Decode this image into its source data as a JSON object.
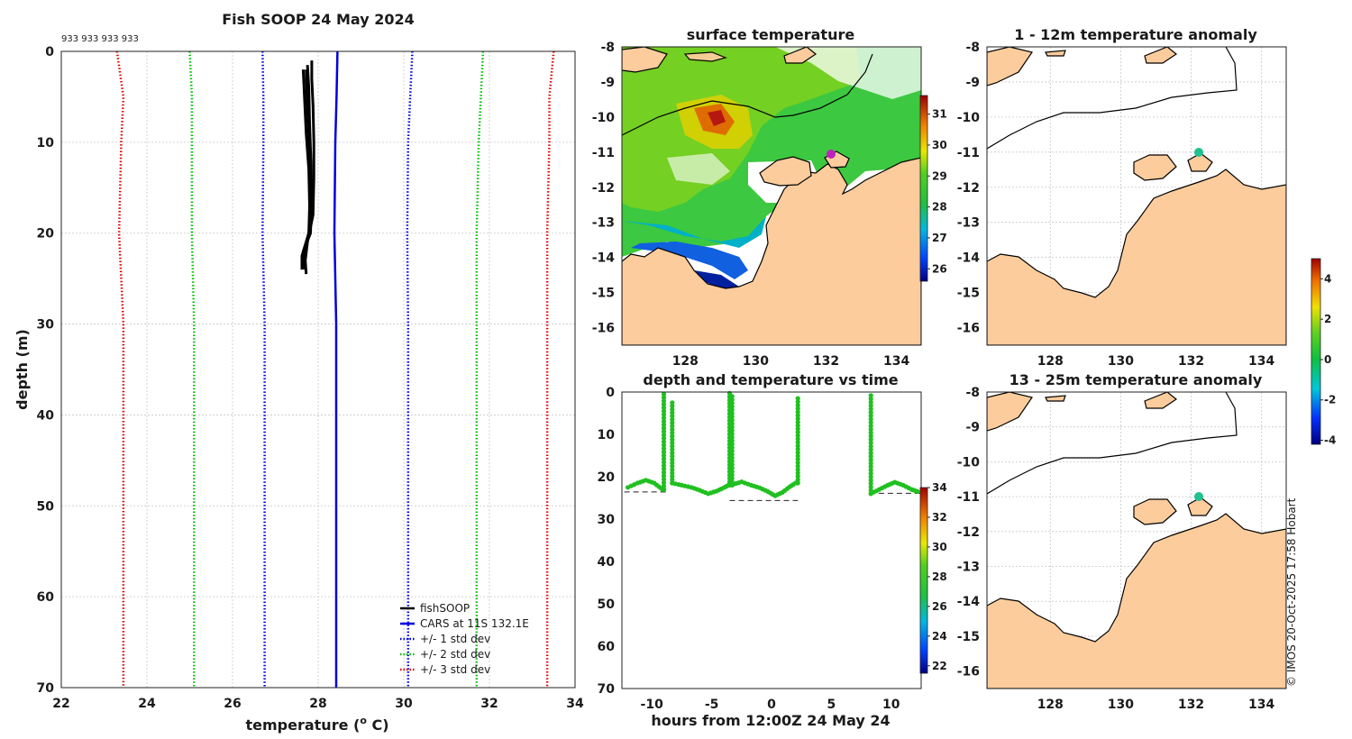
{
  "title_main": "Fish SOOP 24 May 2024",
  "sample_ids": "933 933 933 933",
  "credit": "© IMOS 20-Oct-2025 17:58 Hobart",
  "chart_data": [
    {
      "id": "profile",
      "type": "line",
      "title": "Fish SOOP 24 May 2024",
      "xlabel": "temperature (",
      "xlabel_sup": "o",
      "xlabel_end": " C)",
      "ylabel": "depth (m)",
      "xlim": [
        22,
        34
      ],
      "ylim": [
        0,
        70
      ],
      "y_reversed": true,
      "xticks": [
        22,
        24,
        26,
        28,
        30,
        32,
        34
      ],
      "yticks": [
        0,
        10,
        20,
        30,
        40,
        50,
        60,
        70
      ],
      "legend_position": "bottom-right",
      "series": [
        {
          "name": "fishSOOP",
          "color": "#000000",
          "style": "solid",
          "profiles": [
            {
              "depth": [
                1,
                3,
                6,
                10,
                14,
                18,
                21,
                23,
                24.5
              ],
              "temp": [
                27.85,
                27.85,
                27.88,
                27.9,
                27.9,
                27.88,
                27.75,
                27.7,
                27.72
              ]
            },
            {
              "depth": [
                1.5,
                4,
                8,
                12,
                16,
                19,
                22,
                24
              ],
              "temp": [
                27.75,
                27.78,
                27.8,
                27.83,
                27.85,
                27.83,
                27.68,
                27.66
              ]
            },
            {
              "depth": [
                2,
                5,
                9,
                13,
                17,
                20,
                22.5,
                24
              ],
              "temp": [
                27.65,
                27.68,
                27.72,
                27.78,
                27.8,
                27.78,
                27.62,
                27.62
              ]
            },
            {
              "depth": [
                2,
                5,
                9,
                13,
                17,
                20,
                22,
                23.5
              ],
              "temp": [
                27.72,
                27.74,
                27.78,
                27.82,
                27.84,
                27.82,
                27.65,
                27.65
              ]
            }
          ]
        },
        {
          "name": "CARS at 11S 132.1E",
          "color": "#0000e0",
          "style": "solid",
          "depth": [
            0,
            5,
            10,
            20,
            30,
            40,
            50,
            60,
            70
          ],
          "temp": [
            28.45,
            28.43,
            28.4,
            28.38,
            28.42,
            28.42,
            28.42,
            28.42,
            28.42
          ]
        },
        {
          "name": "+/- 1 std dev",
          "color": "#0000e0",
          "style": "dotted",
          "depth": [
            0,
            5,
            10,
            20,
            30,
            40,
            50,
            60,
            70
          ],
          "lower": [
            26.7,
            26.72,
            26.72,
            26.7,
            26.75,
            26.75,
            26.75,
            26.75,
            26.75
          ],
          "upper": [
            30.2,
            30.15,
            30.1,
            30.08,
            30.1,
            30.1,
            30.1,
            30.1,
            30.1
          ]
        },
        {
          "name": "+/- 2 std dev",
          "color": "#00c000",
          "style": "dotted",
          "depth": [
            0,
            5,
            10,
            20,
            30,
            40,
            50,
            60,
            70
          ],
          "lower": [
            25.0,
            25.05,
            25.05,
            25.05,
            25.1,
            25.1,
            25.1,
            25.1,
            25.1
          ],
          "upper": [
            31.85,
            31.8,
            31.75,
            31.7,
            31.7,
            31.7,
            31.7,
            31.7,
            31.7
          ]
        },
        {
          "name": "+/- 3 std dev",
          "color": "#e00000",
          "style": "dotted",
          "depth": [
            0,
            5,
            10,
            20,
            30,
            40,
            50,
            60,
            70
          ],
          "lower": [
            23.3,
            23.45,
            23.4,
            23.35,
            23.45,
            23.45,
            23.45,
            23.45,
            23.45
          ],
          "upper": [
            33.5,
            33.4,
            33.4,
            33.35,
            33.35,
            33.35,
            33.35,
            33.35,
            33.35
          ]
        }
      ]
    },
    {
      "id": "sst_map",
      "type": "heatmap",
      "title": "surface temperature",
      "xlim": [
        126.2,
        134.7
      ],
      "ylim": [
        -16.5,
        -8
      ],
      "xticks": [
        128,
        130,
        132,
        134
      ],
      "yticks": [
        -8,
        -9,
        -10,
        -11,
        -12,
        -13,
        -14,
        -15,
        -16
      ],
      "colorbar": {
        "range": [
          25.6,
          31.6
        ],
        "ticks": [
          26,
          27,
          28,
          29,
          30,
          31
        ]
      },
      "marker": {
        "lon": 132.2,
        "lat": -11.0,
        "color": "#c020c0"
      }
    },
    {
      "id": "anom_1_12",
      "type": "heatmap",
      "title": "1 - 12m temperature anomaly",
      "xlim": [
        126.2,
        134.7
      ],
      "ylim": [
        -16.5,
        -8
      ],
      "xticks": [
        128,
        130,
        132,
        134
      ],
      "yticks": [
        -8,
        -9,
        -10,
        -11,
        -12,
        -13,
        -14,
        -15,
        -16
      ],
      "marker": {
        "lon": 132.2,
        "lat": -11.0,
        "color": "#20c090"
      }
    },
    {
      "id": "anom_13_25",
      "type": "heatmap",
      "title": "13 - 25m temperature anomaly",
      "xlim": [
        126.2,
        134.7
      ],
      "ylim": [
        -16.5,
        -8
      ],
      "xticks": [
        128,
        130,
        132,
        134
      ],
      "yticks": [
        -8,
        -9,
        -10,
        -11,
        -12,
        -13,
        -14,
        -15,
        -16
      ],
      "marker": {
        "lon": 132.2,
        "lat": -11.0,
        "color": "#20c090"
      }
    },
    {
      "id": "anomaly_colorbar",
      "type": "heatmap",
      "range": [
        -4.2,
        5
      ],
      "ticks": [
        -4,
        -2,
        0,
        2,
        4
      ]
    },
    {
      "id": "time_series",
      "type": "scatter",
      "title": "depth and temperature vs time",
      "xlabel": "hours from 12:00Z 24 May 24",
      "xlim": [
        -12.5,
        12.5
      ],
      "ylim": [
        0,
        70
      ],
      "y_reversed": true,
      "xticks": [
        -10,
        -5,
        0,
        5,
        10
      ],
      "yticks": [
        0,
        10,
        20,
        30,
        40,
        50,
        60,
        70
      ],
      "colorbar": {
        "range": [
          21.5,
          34
        ],
        "ticks": [
          22,
          24,
          26,
          28,
          30,
          32,
          34
        ]
      },
      "point_temperature": 28,
      "tracks": [
        {
          "t": [
            -12,
            -11.2,
            -10.5,
            -9.8,
            -9.2,
            -9.0
          ],
          "d": [
            22.5,
            21.5,
            20.8,
            21.5,
            22.8,
            23
          ]
        },
        {
          "t": [
            -8.3,
            -7.5,
            -6.7,
            -6.0,
            -5.3,
            -4.6,
            -4.0,
            -3.6
          ],
          "d": [
            21.5,
            22,
            22.5,
            23.2,
            24,
            23.4,
            22.6,
            22
          ]
        },
        {
          "t": [
            -3.2,
            -2.5,
            -1.7,
            -1.0,
            -0.3,
            0.3,
            0.9,
            1.5,
            2.0
          ],
          "d": [
            21.8,
            21.2,
            22,
            22.6,
            23.5,
            24.5,
            23.7,
            22.4,
            21.5
          ]
        },
        {
          "t": [
            8.3,
            9.0,
            9.7,
            10.3,
            11.0,
            11.7,
            12.2
          ],
          "d": [
            24,
            23,
            22,
            21.3,
            22,
            23,
            23.5
          ]
        }
      ],
      "casts": [
        {
          "t": -9.0,
          "d0": 0.5,
          "d1": 23
        },
        {
          "t": -8.3,
          "d0": 2.5,
          "d1": 21.5
        },
        {
          "t": -3.5,
          "d0": 0.3,
          "d1": 22
        },
        {
          "t": -3.3,
          "d0": 1,
          "d1": 22
        },
        {
          "t": 2.2,
          "d0": 1.5,
          "d1": 21.5
        },
        {
          "t": 8.3,
          "d0": 0.8,
          "d1": 24
        }
      ],
      "bottom_segments": [
        {
          "t0": -12.3,
          "t1": -8.8,
          "d": 23.6
        },
        {
          "t0": -3.5,
          "t1": 2.2,
          "d": 25.6
        },
        {
          "t0": 8.2,
          "t1": 12.5,
          "d": 23.9
        }
      ]
    }
  ]
}
